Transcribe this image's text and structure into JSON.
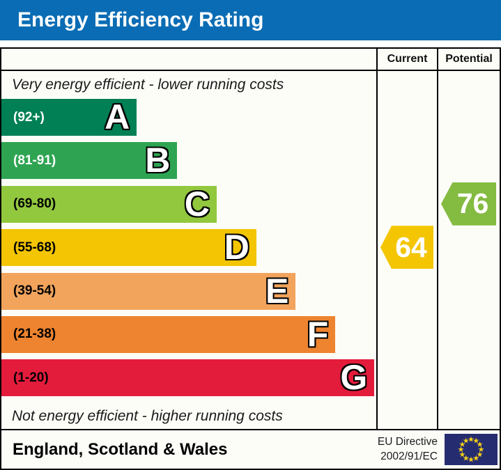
{
  "title": "Energy Efficiency Rating",
  "colors": {
    "title_bar_bg": "#0a6cb4",
    "border": "#000000",
    "flag_bg": "#252d70",
    "flag_star": "#f7d117"
  },
  "table": {
    "current_label": "Current",
    "potential_label": "Potential"
  },
  "chart_data": {
    "type": "bar",
    "title": "Energy Efficiency Rating",
    "top_note": "Very energy efficient - lower running costs",
    "bottom_note": "Not energy efficient - higher running costs",
    "bands": [
      {
        "letter": "A",
        "range": "(92+)",
        "color": "#008054",
        "label_color": "#ffffff",
        "width_pct": 36.1
      },
      {
        "letter": "B",
        "range": "(81-91)",
        "color": "#2ea452",
        "label_color": "#ffffff",
        "width_pct": 46.9
      },
      {
        "letter": "C",
        "range": "(69-80)",
        "color": "#92c83e",
        "label_color": "#000000",
        "width_pct": 57.4
      },
      {
        "letter": "D",
        "range": "(55-68)",
        "color": "#f3c502",
        "label_color": "#000000",
        "width_pct": 68.0
      },
      {
        "letter": "E",
        "range": "(39-54)",
        "color": "#f2a45c",
        "label_color": "#000000",
        "width_pct": 78.5
      },
      {
        "letter": "F",
        "range": "(21-38)",
        "color": "#ee8430",
        "label_color": "#000000",
        "width_pct": 89.1
      },
      {
        "letter": "G",
        "range": "(1-20)",
        "color": "#e31c3c",
        "label_color": "#000000",
        "width_pct": 99.5
      }
    ],
    "current": {
      "value": "64",
      "band": "D",
      "color": "#f3c502"
    },
    "potential": {
      "value": "76",
      "band": "C",
      "color": "#84bb41"
    }
  },
  "footer": {
    "region": "England, Scotland & Wales",
    "directive_line1": "EU Directive",
    "directive_line2": "2002/91/EC"
  }
}
